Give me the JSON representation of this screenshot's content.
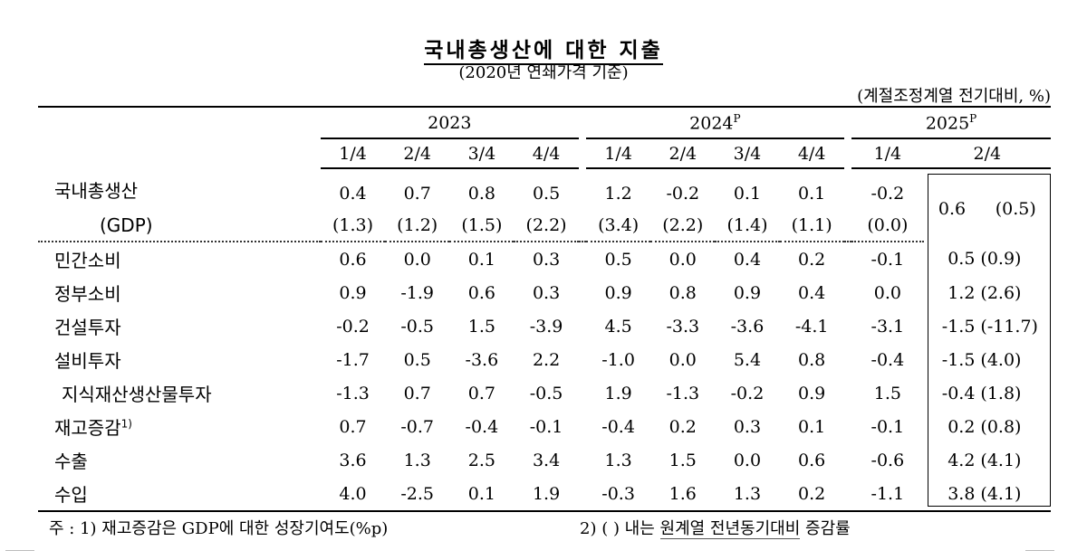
{
  "title": "국내총생산에 대한 지출",
  "subtitle": "(2020년 연쇄가격 기준)",
  "unit": "(계절조정계열 전기대비, %)",
  "years": [
    {
      "label": "2023",
      "sup": ""
    },
    {
      "label": "2024",
      "sup": "P"
    },
    {
      "label": "2025",
      "sup": "P"
    }
  ],
  "quarters": [
    "1/4",
    "2/4",
    "3/4",
    "4/4",
    "1/4",
    "2/4",
    "3/4",
    "4/4",
    "1/4",
    "2/4"
  ],
  "gdp": {
    "label1": "국내총생산",
    "label2": "(GDP)",
    "values": [
      "0.4",
      "0.7",
      "0.8",
      "0.5",
      "1.2",
      "-0.2",
      "0.1",
      "0.1",
      "-0.2",
      "0.6"
    ],
    "yoy": [
      "(1.3)",
      "(1.2)",
      "(1.5)",
      "(2.2)",
      "(3.4)",
      "(2.2)",
      "(1.4)",
      "(1.1)",
      "(0.0)",
      "(0.5)"
    ]
  },
  "rows": [
    {
      "label": "민간소비",
      "values": [
        "0.6",
        "0.0",
        "0.1",
        "0.3",
        "0.5",
        "0.0",
        "0.4",
        "0.2",
        "-0.1",
        "0.5"
      ],
      "yoy": "(0.9)"
    },
    {
      "label": "정부소비",
      "values": [
        "0.9",
        "-1.9",
        "0.6",
        "0.3",
        "0.9",
        "0.8",
        "0.9",
        "0.4",
        "0.0",
        "1.2"
      ],
      "yoy": "(2.6)"
    },
    {
      "label": "건설투자",
      "values": [
        "-0.2",
        "-0.5",
        "1.5",
        "-3.9",
        "4.5",
        "-3.3",
        "-3.6",
        "-4.1",
        "-3.1",
        "-1.5"
      ],
      "yoy": "(-11.7)"
    },
    {
      "label": "설비투자",
      "values": [
        "-1.7",
        "0.5",
        "-3.6",
        "2.2",
        "-1.0",
        "0.0",
        "5.4",
        "0.8",
        "-0.4",
        "-1.5"
      ],
      "yoy": "(4.0)"
    },
    {
      "label": "지식재산생산물투자",
      "values": [
        "-1.3",
        "0.7",
        "0.7",
        "-0.5",
        "1.9",
        "-1.3",
        "-0.2",
        "0.9",
        "1.5",
        "-0.4"
      ],
      "yoy": "(1.8)"
    },
    {
      "label": "재고증감",
      "sup": "1)",
      "values": [
        "0.7",
        "-0.7",
        "-0.4",
        "-0.1",
        "-0.4",
        "0.2",
        "0.3",
        "0.1",
        "-0.1",
        "0.2"
      ],
      "yoy": "(0.8)"
    },
    {
      "label": "수출",
      "values": [
        "3.6",
        "1.3",
        "2.5",
        "3.4",
        "1.3",
        "1.5",
        "0.0",
        "0.6",
        "-0.6",
        "4.2"
      ],
      "yoy": "(4.1)"
    },
    {
      "label": "수입",
      "values": [
        "4.0",
        "-2.5",
        "0.1",
        "1.9",
        "-0.3",
        "1.6",
        "1.3",
        "0.2",
        "-1.1",
        "3.8"
      ],
      "yoy": "(4.1)"
    }
  ],
  "notes": {
    "note1": "주 : 1) 재고증감은 GDP에 대한 성장기여도(%p)",
    "note2_prefix": "2) (  ) 내는 ",
    "note2_underlined": "원계열 전년동기대비",
    "note2_suffix": " 증감률"
  }
}
